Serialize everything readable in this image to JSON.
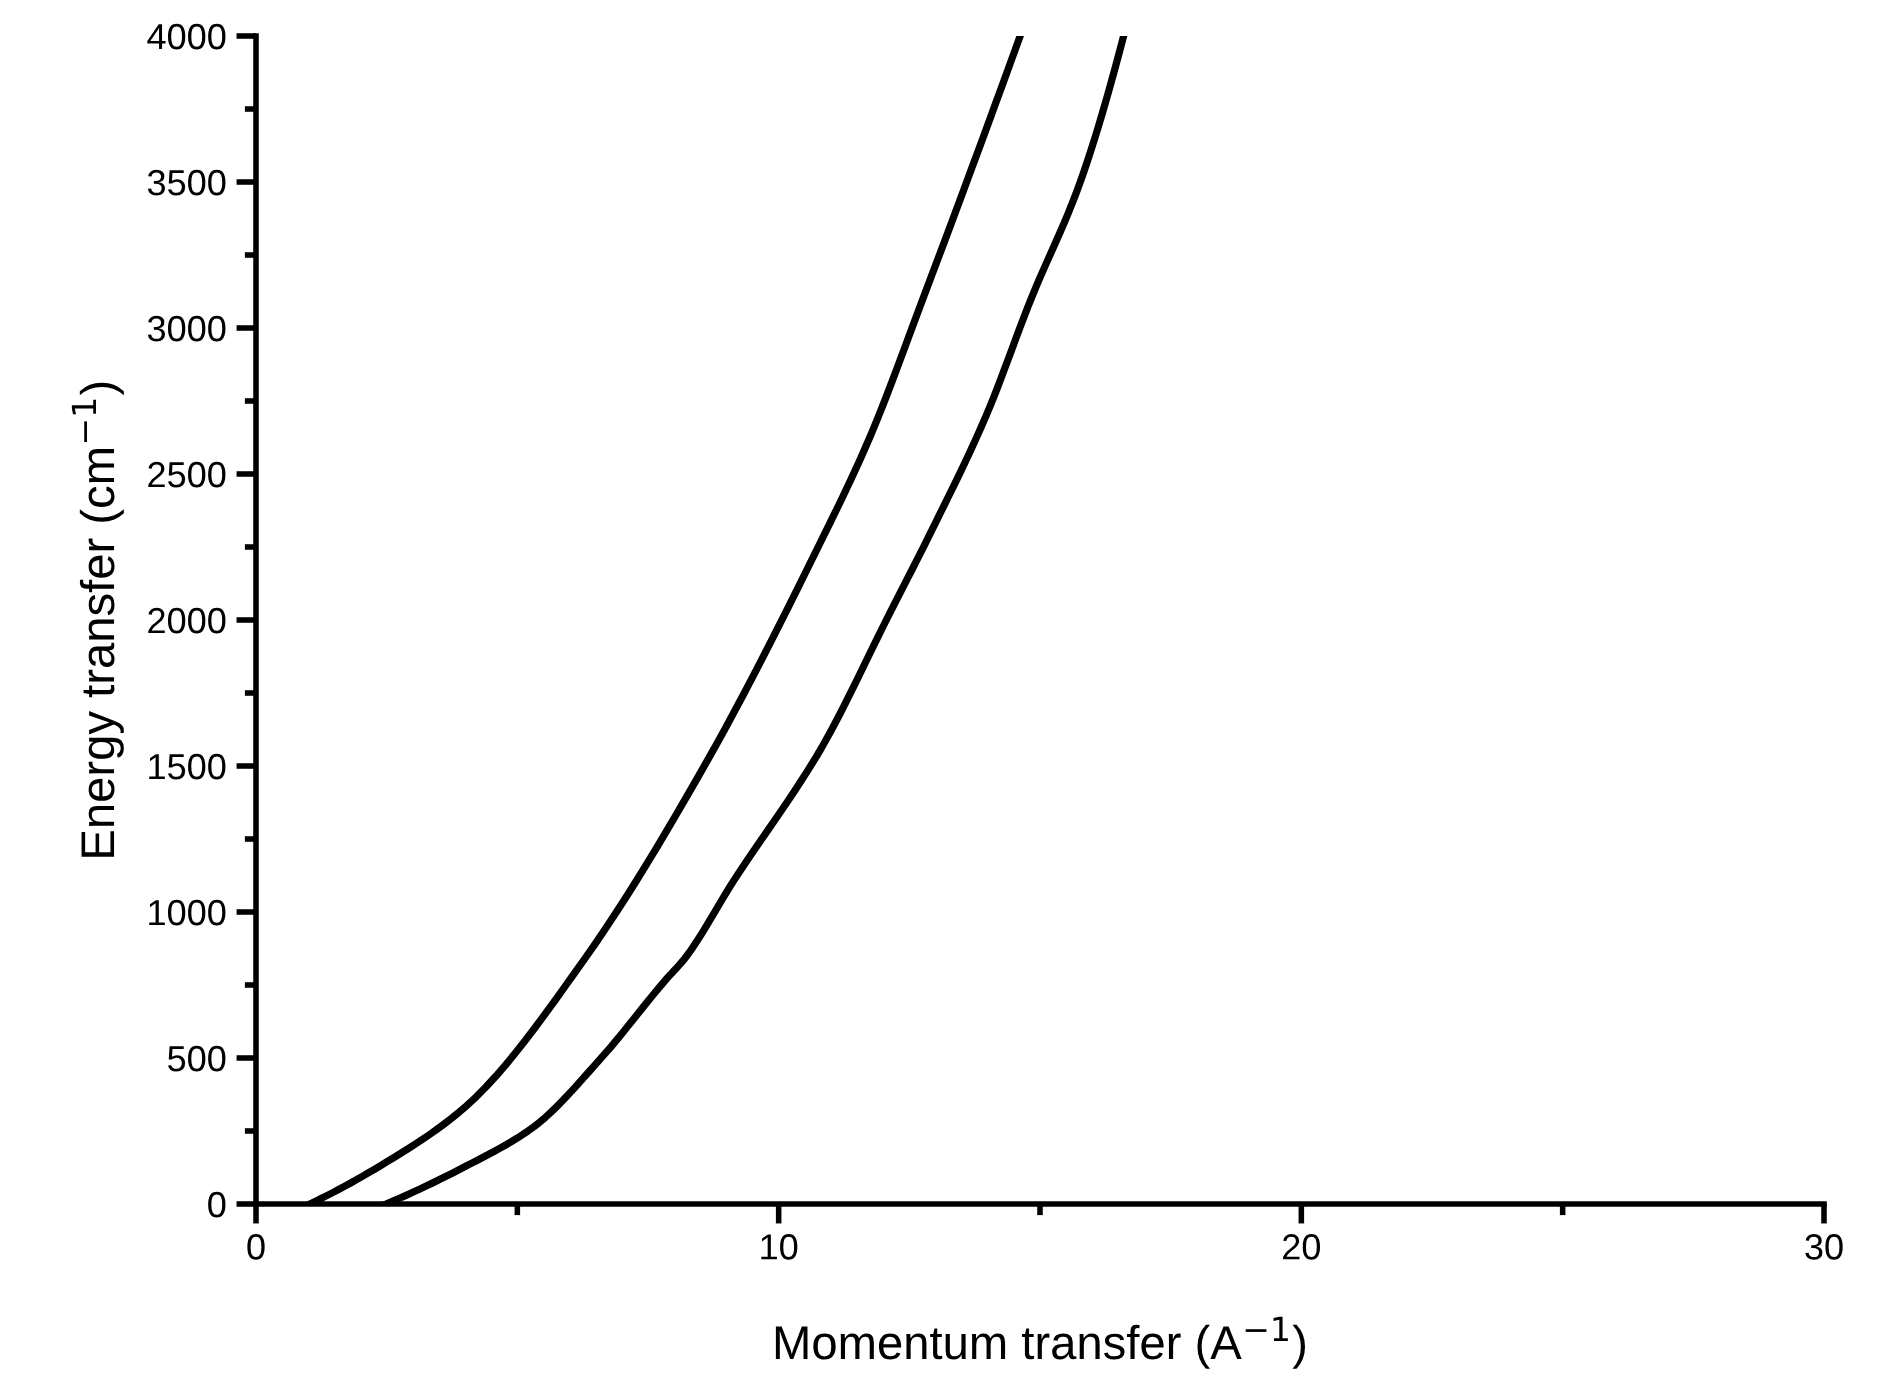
{
  "chart_data": {
    "type": "line",
    "xlabel": "Momentum transfer (A$^{−1}$)",
    "ylabel": "Energy transfer (cm$^{−1}$)",
    "xlim": [
      0,
      30
    ],
    "ylim": [
      0,
      4000
    ],
    "xticks": [
      0,
      10,
      20,
      30
    ],
    "yticks": [
      0,
      500,
      1000,
      1500,
      2000,
      2500,
      3000,
      3500,
      4000
    ],
    "grid": false,
    "legend": false,
    "marker": "none",
    "line_style": "solid",
    "series": [
      {
        "color": "#000000",
        "x": [
          1.03,
          2.37,
          4.02,
          6.29,
          8.64,
          10.7,
          11.73,
          12.76,
          14.62
        ],
        "values": [
          0,
          130,
          335,
          840,
          1520,
          2230,
          2620,
          3100,
          4000
        ]
      },
      {
        "color": "#000000",
        "x": [
          2.49,
          4.02,
          5.32,
          6.58,
          7.85,
          8.2,
          9.15,
          10.68,
          11.0,
          12.06,
          12.91,
          13.97,
          14.83,
          15.77,
          16.6
        ],
        "values": [
          0,
          130,
          265,
          495,
          770,
          840,
          1110,
          1520,
          1620,
          2000,
          2300,
          2700,
          3100,
          3500,
          4000
        ]
      }
    ]
  }
}
